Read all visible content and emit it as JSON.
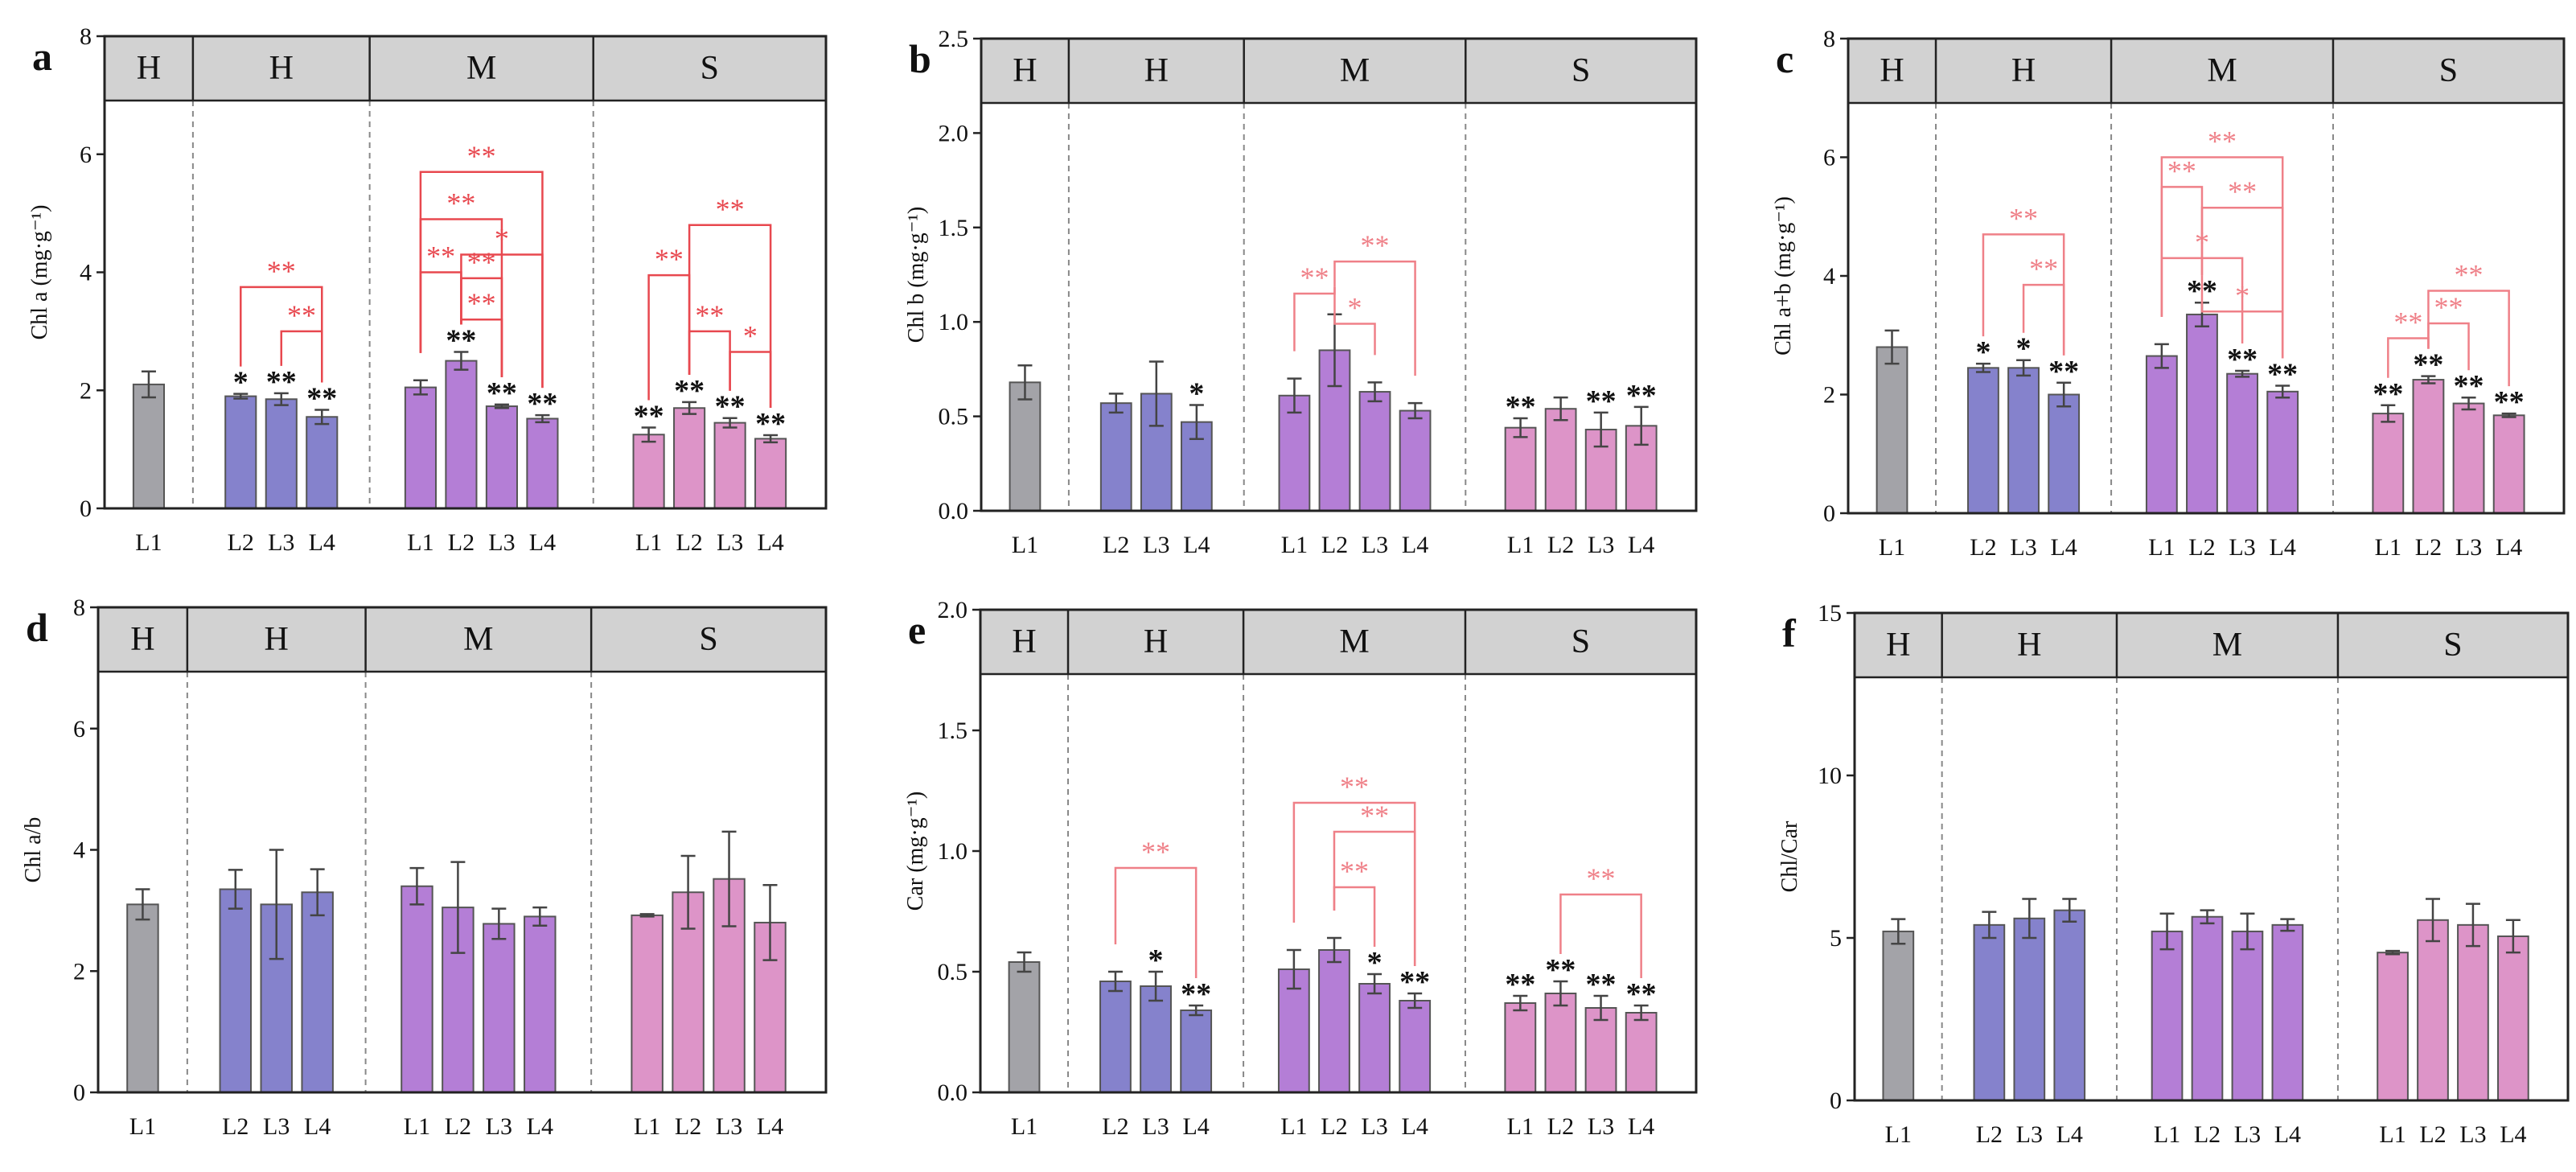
{
  "figure": {
    "group_labels": [
      "H",
      "H",
      "M",
      "S"
    ],
    "colors": {
      "gray": "#a3a3a8",
      "blue": "#8582cc",
      "purple": "#b47ed6",
      "pink": "#dd94c8",
      "header": "#d2d2d2",
      "red_sig": "#e8484f",
      "pink_sig": "#ef8088",
      "black_sig": "#111111"
    }
  },
  "chart_data": [
    {
      "type": "bar",
      "letter": "a",
      "ylabel": "Chl a (mg·g⁻¹)",
      "ylim": [
        0,
        8
      ],
      "yticks": [
        0,
        2,
        4,
        6,
        8
      ],
      "tick_labels": [
        "0",
        "2",
        "4",
        "6",
        "8"
      ],
      "bracket_color": "red",
      "groups": [
        {
          "label": "H",
          "categories": [
            "L1"
          ],
          "color": "gray",
          "values": [
            2.1
          ],
          "errors": [
            0.22
          ],
          "sig": [
            ""
          ]
        },
        {
          "label": "H",
          "categories": [
            "L2",
            "L3",
            "L4"
          ],
          "color": "blue",
          "values": [
            1.9,
            1.85,
            1.55
          ],
          "errors": [
            0.04,
            0.1,
            0.12
          ],
          "sig": [
            "*",
            "**",
            "**"
          ]
        },
        {
          "label": "M",
          "categories": [
            "L1",
            "L2",
            "L3",
            "L4"
          ],
          "color": "purple",
          "values": [
            2.05,
            2.5,
            1.73,
            1.52
          ],
          "errors": [
            0.12,
            0.15,
            0.03,
            0.06
          ],
          "sig": [
            "",
            "**",
            "**",
            "**"
          ]
        },
        {
          "label": "S",
          "categories": [
            "L1",
            "L2",
            "L3",
            "L4"
          ],
          "color": "pink",
          "values": [
            1.25,
            1.7,
            1.45,
            1.18
          ],
          "errors": [
            0.12,
            0.1,
            0.08,
            0.06
          ],
          "sig": [
            "**",
            "**",
            "**",
            "**"
          ]
        }
      ],
      "brackets": [
        {
          "from": [
            1,
            0
          ],
          "to": [
            1,
            2
          ],
          "y": 3.75,
          "label": "**"
        },
        {
          "from": [
            1,
            1
          ],
          "to": [
            1,
            2
          ],
          "y": 3.0,
          "label": "**"
        },
        {
          "from": [
            2,
            0
          ],
          "to": [
            2,
            3
          ],
          "y": 5.7,
          "label": "**"
        },
        {
          "from": [
            2,
            0
          ],
          "to": [
            2,
            2
          ],
          "y": 4.9,
          "label": "**"
        },
        {
          "from": [
            2,
            1
          ],
          "to": [
            2,
            3
          ],
          "y": 4.3,
          "label": "*"
        },
        {
          "from": [
            2,
            0
          ],
          "to": [
            2,
            1
          ],
          "y": 4.0,
          "label": "**"
        },
        {
          "from": [
            2,
            1
          ],
          "to": [
            2,
            2
          ],
          "y": 3.9,
          "label": "**"
        },
        {
          "from": [
            2,
            1
          ],
          "to": [
            2,
            2
          ],
          "y": 3.2,
          "label": "**"
        },
        {
          "from": [
            3,
            1
          ],
          "to": [
            3,
            3
          ],
          "y": 4.8,
          "label": "**"
        },
        {
          "from": [
            3,
            0
          ],
          "to": [
            3,
            1
          ],
          "y": 3.95,
          "label": "**"
        },
        {
          "from": [
            3,
            1
          ],
          "to": [
            3,
            2
          ],
          "y": 3.0,
          "label": "**"
        },
        {
          "from": [
            3,
            2
          ],
          "to": [
            3,
            3
          ],
          "y": 2.65,
          "label": "*"
        }
      ]
    },
    {
      "type": "bar",
      "letter": "b",
      "ylabel": "Chl b (mg·g⁻¹)",
      "ylim": [
        0,
        2.5
      ],
      "yticks": [
        0,
        0.5,
        1.0,
        1.5,
        2.0,
        2.5
      ],
      "tick_labels": [
        "0.0",
        "0.5",
        "1.0",
        "1.5",
        "2.0",
        "2.5"
      ],
      "bracket_color": "pink",
      "groups": [
        {
          "label": "H",
          "categories": [
            "L1"
          ],
          "color": "gray",
          "values": [
            0.68
          ],
          "errors": [
            0.09
          ],
          "sig": [
            ""
          ]
        },
        {
          "label": "H",
          "categories": [
            "L2",
            "L3",
            "L4"
          ],
          "color": "blue",
          "values": [
            0.57,
            0.62,
            0.47
          ],
          "errors": [
            0.05,
            0.17,
            0.09
          ],
          "sig": [
            "",
            "",
            "*"
          ]
        },
        {
          "label": "M",
          "categories": [
            "L1",
            "L2",
            "L3",
            "L4"
          ],
          "color": "purple",
          "values": [
            0.61,
            0.85,
            0.63,
            0.53
          ],
          "errors": [
            0.09,
            0.19,
            0.05,
            0.04
          ],
          "sig": [
            "",
            "",
            "",
            ""
          ]
        },
        {
          "label": "S",
          "categories": [
            "L1",
            "L2",
            "L3",
            "L4"
          ],
          "color": "pink",
          "values": [
            0.44,
            0.54,
            0.43,
            0.45
          ],
          "errors": [
            0.05,
            0.06,
            0.09,
            0.1
          ],
          "sig": [
            "**",
            "",
            "**",
            "**"
          ]
        }
      ],
      "brackets": [
        {
          "from": [
            2,
            1
          ],
          "to": [
            2,
            3
          ],
          "y": 1.32,
          "label": "**"
        },
        {
          "from": [
            2,
            0
          ],
          "to": [
            2,
            1
          ],
          "y": 1.15,
          "label": "**"
        },
        {
          "from": [
            2,
            1
          ],
          "to": [
            2,
            2
          ],
          "y": 0.99,
          "label": "*"
        }
      ]
    },
    {
      "type": "bar",
      "letter": "c",
      "ylabel": "Chl a+b (mg·g⁻¹)",
      "ylim": [
        0,
        8
      ],
      "yticks": [
        0,
        2,
        4,
        6,
        8
      ],
      "tick_labels": [
        "0",
        "2",
        "4",
        "6",
        "8"
      ],
      "bracket_color": "pink",
      "groups": [
        {
          "label": "H",
          "categories": [
            "L1"
          ],
          "color": "gray",
          "values": [
            2.8
          ],
          "errors": [
            0.28
          ],
          "sig": [
            ""
          ]
        },
        {
          "label": "H",
          "categories": [
            "L2",
            "L3",
            "L4"
          ],
          "color": "blue",
          "values": [
            2.45,
            2.45,
            2.0
          ],
          "errors": [
            0.07,
            0.13,
            0.2
          ],
          "sig": [
            "*",
            "*",
            "**"
          ]
        },
        {
          "label": "M",
          "categories": [
            "L1",
            "L2",
            "L3",
            "L4"
          ],
          "color": "purple",
          "values": [
            2.65,
            3.35,
            2.35,
            2.05
          ],
          "errors": [
            0.2,
            0.2,
            0.05,
            0.1
          ],
          "sig": [
            "",
            "**",
            "**",
            "**"
          ]
        },
        {
          "label": "S",
          "categories": [
            "L1",
            "L2",
            "L3",
            "L4"
          ],
          "color": "pink",
          "values": [
            1.68,
            2.25,
            1.85,
            1.65
          ],
          "errors": [
            0.14,
            0.06,
            0.1,
            0.03
          ],
          "sig": [
            "**",
            "**",
            "**",
            "**"
          ]
        }
      ],
      "brackets": [
        {
          "from": [
            1,
            0
          ],
          "to": [
            1,
            2
          ],
          "y": 4.7,
          "label": "**"
        },
        {
          "from": [
            1,
            1
          ],
          "to": [
            1,
            2
          ],
          "y": 3.85,
          "label": "**"
        },
        {
          "from": [
            2,
            0
          ],
          "to": [
            2,
            3
          ],
          "y": 6.0,
          "label": "**"
        },
        {
          "from": [
            2,
            0
          ],
          "to": [
            2,
            1
          ],
          "y": 5.5,
          "label": "**"
        },
        {
          "from": [
            2,
            1
          ],
          "to": [
            2,
            3
          ],
          "y": 5.15,
          "label": "**"
        },
        {
          "from": [
            2,
            0
          ],
          "to": [
            2,
            2
          ],
          "y": 4.3,
          "label": "*"
        },
        {
          "from": [
            2,
            1
          ],
          "to": [
            2,
            3
          ],
          "y": 3.4,
          "label": "*"
        },
        {
          "from": [
            3,
            1
          ],
          "to": [
            3,
            3
          ],
          "y": 3.75,
          "label": "**"
        },
        {
          "from": [
            3,
            0
          ],
          "to": [
            3,
            1
          ],
          "y": 2.95,
          "label": "**"
        },
        {
          "from": [
            3,
            1
          ],
          "to": [
            3,
            2
          ],
          "y": 3.2,
          "label": "**"
        }
      ]
    },
    {
      "type": "bar",
      "letter": "d",
      "ylabel": "Chl a/b",
      "ylim": [
        0,
        8
      ],
      "yticks": [
        0,
        2,
        4,
        6,
        8
      ],
      "tick_labels": [
        "0",
        "2",
        "4",
        "6",
        "8"
      ],
      "bracket_color": "pink",
      "groups": [
        {
          "label": "H",
          "categories": [
            "L1"
          ],
          "color": "gray",
          "values": [
            3.1
          ],
          "errors": [
            0.25
          ],
          "sig": [
            ""
          ]
        },
        {
          "label": "H",
          "categories": [
            "L2",
            "L3",
            "L4"
          ],
          "color": "blue",
          "values": [
            3.35,
            3.1,
            3.3
          ],
          "errors": [
            0.32,
            0.9,
            0.38
          ],
          "sig": [
            "",
            "",
            ""
          ]
        },
        {
          "label": "M",
          "categories": [
            "L1",
            "L2",
            "L3",
            "L4"
          ],
          "color": "purple",
          "values": [
            3.4,
            3.05,
            2.78,
            2.9
          ],
          "errors": [
            0.3,
            0.75,
            0.25,
            0.15
          ],
          "sig": [
            "",
            "",
            "",
            ""
          ]
        },
        {
          "label": "S",
          "categories": [
            "L1",
            "L2",
            "L3",
            "L4"
          ],
          "color": "pink",
          "values": [
            2.92,
            3.3,
            3.52,
            2.8
          ],
          "errors": [
            0.02,
            0.6,
            0.78,
            0.62
          ],
          "sig": [
            "",
            "",
            "",
            ""
          ]
        }
      ],
      "brackets": []
    },
    {
      "type": "bar",
      "letter": "e",
      "ylabel": "Car (mg·g⁻¹)",
      "ylim": [
        0,
        2.0
      ],
      "yticks": [
        0,
        0.5,
        1.0,
        1.5,
        2.0
      ],
      "tick_labels": [
        "0.0",
        "0.5",
        "1.0",
        "1.5",
        "2.0"
      ],
      "bracket_color": "pink",
      "groups": [
        {
          "label": "H",
          "categories": [
            "L1"
          ],
          "color": "gray",
          "values": [
            0.54
          ],
          "errors": [
            0.04
          ],
          "sig": [
            ""
          ]
        },
        {
          "label": "H",
          "categories": [
            "L2",
            "L3",
            "L4"
          ],
          "color": "blue",
          "values": [
            0.46,
            0.44,
            0.34
          ],
          "errors": [
            0.04,
            0.06,
            0.02
          ],
          "sig": [
            "",
            "*",
            "**"
          ]
        },
        {
          "label": "M",
          "categories": [
            "L1",
            "L2",
            "L3",
            "L4"
          ],
          "color": "purple",
          "values": [
            0.51,
            0.59,
            0.45,
            0.38
          ],
          "errors": [
            0.08,
            0.05,
            0.04,
            0.03
          ],
          "sig": [
            "",
            "",
            "*",
            "**"
          ]
        },
        {
          "label": "S",
          "categories": [
            "L1",
            "L2",
            "L3",
            "L4"
          ],
          "color": "pink",
          "values": [
            0.37,
            0.41,
            0.35,
            0.33
          ],
          "errors": [
            0.03,
            0.05,
            0.05,
            0.03
          ],
          "sig": [
            "**",
            "**",
            "**",
            "**"
          ]
        }
      ],
      "brackets": [
        {
          "from": [
            1,
            0
          ],
          "to": [
            1,
            2
          ],
          "y": 0.93,
          "label": "**"
        },
        {
          "from": [
            2,
            0
          ],
          "to": [
            2,
            3
          ],
          "y": 1.2,
          "label": "**"
        },
        {
          "from": [
            2,
            1
          ],
          "to": [
            2,
            3
          ],
          "y": 1.08,
          "label": "**"
        },
        {
          "from": [
            2,
            1
          ],
          "to": [
            2,
            2
          ],
          "y": 0.85,
          "label": "**"
        },
        {
          "from": [
            3,
            1
          ],
          "to": [
            3,
            3
          ],
          "y": 0.82,
          "label": "**"
        }
      ]
    },
    {
      "type": "bar",
      "letter": "f",
      "ylabel": "Chl/Car",
      "ylim": [
        0,
        15
      ],
      "yticks": [
        0,
        5,
        10,
        15
      ],
      "tick_labels": [
        "0",
        "5",
        "10",
        "15"
      ],
      "bracket_color": "pink",
      "groups": [
        {
          "label": "H",
          "categories": [
            "L1"
          ],
          "color": "gray",
          "values": [
            5.2
          ],
          "errors": [
            0.38
          ],
          "sig": [
            ""
          ]
        },
        {
          "label": "H",
          "categories": [
            "L2",
            "L3",
            "L4"
          ],
          "color": "blue",
          "values": [
            5.4,
            5.6,
            5.85
          ],
          "errors": [
            0.4,
            0.6,
            0.35
          ],
          "sig": [
            "",
            "",
            ""
          ]
        },
        {
          "label": "M",
          "categories": [
            "L1",
            "L2",
            "L3",
            "L4"
          ],
          "color": "purple",
          "values": [
            5.2,
            5.65,
            5.2,
            5.4
          ],
          "errors": [
            0.55,
            0.2,
            0.55,
            0.18
          ],
          "sig": [
            "",
            "",
            "",
            ""
          ]
        },
        {
          "label": "S",
          "categories": [
            "L1",
            "L2",
            "L3",
            "L4"
          ],
          "color": "pink",
          "values": [
            4.55,
            5.55,
            5.4,
            5.05
          ],
          "errors": [
            0.05,
            0.65,
            0.65,
            0.5
          ],
          "sig": [
            "",
            "",
            "",
            ""
          ]
        }
      ],
      "brackets": []
    }
  ]
}
